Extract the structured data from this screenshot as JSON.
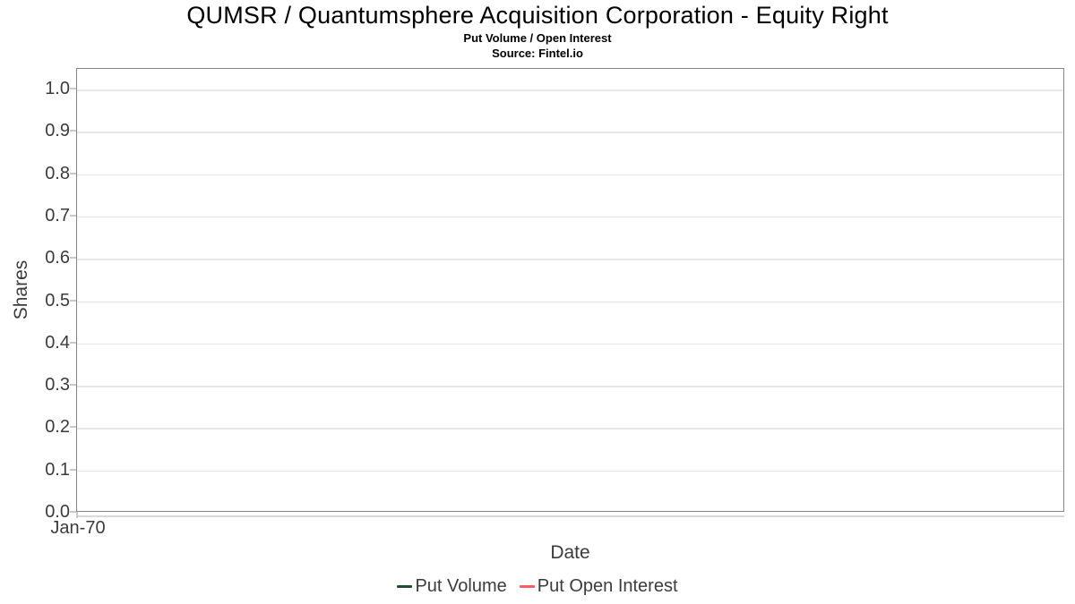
{
  "header": {
    "title": "QUMSR / Quantumsphere Acquisition Corporation - Equity Right",
    "subtitle": "Put Volume / Open Interest",
    "source": "Source: Fintel.io"
  },
  "chart_data": {
    "type": "line",
    "title": "QUMSR / Quantumsphere Acquisition Corporation - Equity Right",
    "subtitle": "Put Volume / Open Interest",
    "source": "Source: Fintel.io",
    "xlabel": "Date",
    "ylabel": "Shares",
    "ylim": [
      0.0,
      1.05
    ],
    "ytick_labels": [
      "0.0",
      "0.1",
      "0.2",
      "0.3",
      "0.4",
      "0.5",
      "0.6",
      "0.7",
      "0.8",
      "0.9",
      "1.0"
    ],
    "xtick_labels": [
      "Jan-70"
    ],
    "grid": true,
    "legend_position": "bottom",
    "series": [
      {
        "name": "Put Volume",
        "color": "#1e4d2b",
        "x": [],
        "values": []
      },
      {
        "name": "Put Open Interest",
        "color": "#f85f5f",
        "x": [],
        "values": []
      }
    ],
    "colors": {
      "grid": "#e7e7e7",
      "frame": "#868686",
      "tick": "#c9c9c9",
      "text": "#3b3b3b"
    }
  }
}
